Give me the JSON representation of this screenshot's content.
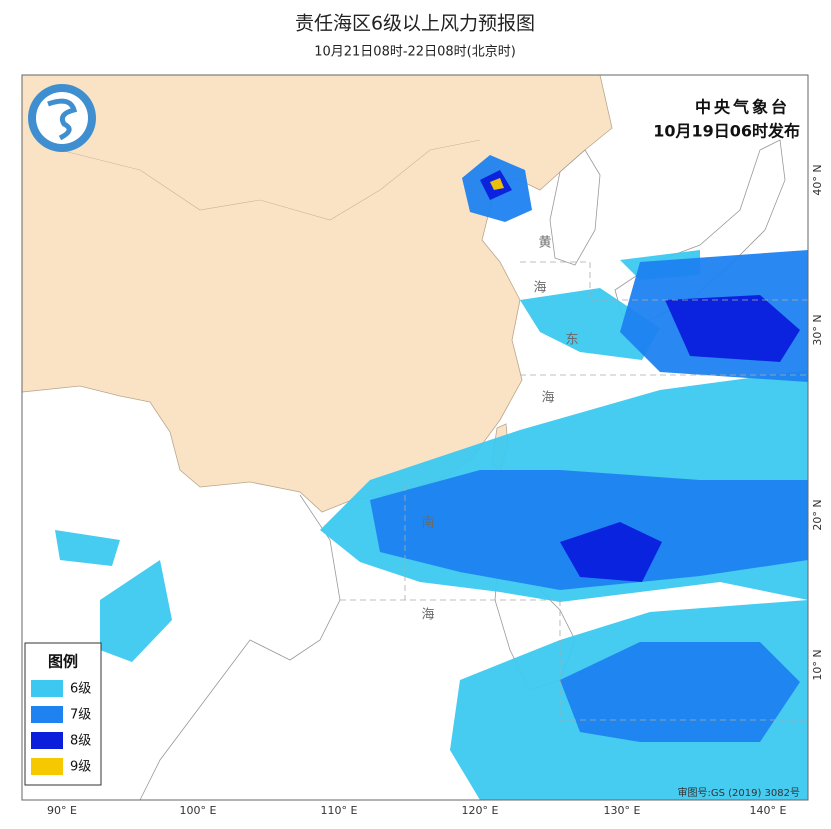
{
  "header": {
    "title": "责任海区6级以上风力预报图",
    "subtitle": "10月21日08时-22日08时(北京时)"
  },
  "issuer": {
    "agency": "中央气象台",
    "time": "10月19日06时发布"
  },
  "legend": {
    "title": "图例",
    "items": [
      {
        "label": "6级",
        "color": "#3cc8f0"
      },
      {
        "label": "7级",
        "color": "#1e82f0"
      },
      {
        "label": "8级",
        "color": "#0a1edc"
      },
      {
        "label": "9级",
        "color": "#f5c800"
      }
    ]
  },
  "axes": {
    "lon_labels": [
      "90° E",
      "100° E",
      "110° E",
      "120° E",
      "130° E",
      "140° E"
    ],
    "lat_labels": [
      "40° N",
      "30° N",
      "20° N",
      "10° N"
    ]
  },
  "sea_labels": [
    "黄",
    "海",
    "东",
    "海",
    "南",
    "海"
  ],
  "map_number": "审图号:GS (2019) 3082号"
}
